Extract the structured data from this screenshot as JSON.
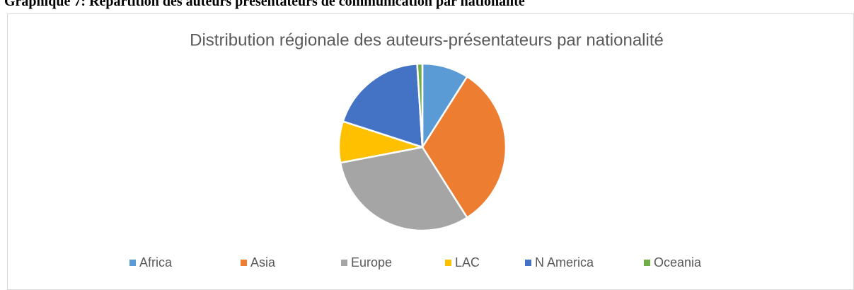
{
  "heading": "Graphique 7: Répartition des auteurs présentateurs de communication par nationalité",
  "chart_data": {
    "type": "pie",
    "title": "Distribution régionale des auteurs-présentateurs par nationalité",
    "categories": [
      "Africa",
      "Asia",
      "Europe",
      "LAC",
      "N America",
      "Oceania"
    ],
    "values": [
      9,
      32,
      31,
      8,
      19,
      1
    ],
    "colors": [
      "#5b9bd5",
      "#ed7d31",
      "#a5a5a5",
      "#ffc000",
      "#4472c4",
      "#70ad47"
    ],
    "legend": "bottom"
  }
}
